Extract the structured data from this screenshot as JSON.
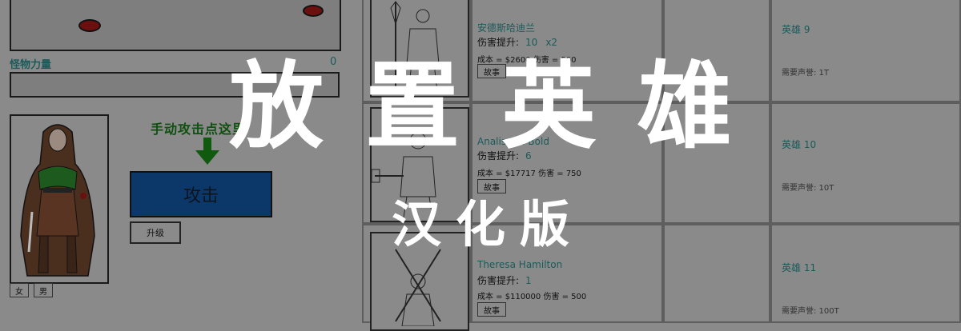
{
  "game": {
    "monster_power_label": "怪物力量",
    "monster_power_value": "0",
    "hint_text": "手动攻击点这里",
    "attack_label": "攻击",
    "upgrade_label": "升级",
    "gender_female": "女",
    "gender_male": "男"
  },
  "heroes": [
    {
      "name": "安德斯哈迪兰",
      "dmg_label": "伤害提升:",
      "dmg_value": "10",
      "multiplier": "x2",
      "cost": "成本 = $2600   伤害 = 500",
      "story": "故事",
      "locked_name": "英雄 9",
      "locked_req": "需要声誉: 1T"
    },
    {
      "name": "Analis the Bold",
      "dmg_label": "伤害提升:",
      "dmg_value": "6",
      "multiplier": "",
      "cost": "成本 = $17717   伤害 = 750",
      "story": "故事",
      "locked_name": "英雄 10",
      "locked_req": "需要声誉: 10T"
    },
    {
      "name": "Theresa Hamilton",
      "dmg_label": "伤害提升:",
      "dmg_value": "1",
      "multiplier": "",
      "cost": "成本 = $110000   伤害 = 500",
      "story": "故事",
      "locked_name": "英雄 11",
      "locked_req": "需要声誉: 100T"
    }
  ],
  "overlay": {
    "title": "放置英雄",
    "subtitle": "汉化版"
  },
  "colors": {
    "attack_button": "#0b3868",
    "text_teal": "#1c5a5a",
    "hint_green": "#0f4f0f",
    "overlay_text": "#ffffff"
  }
}
